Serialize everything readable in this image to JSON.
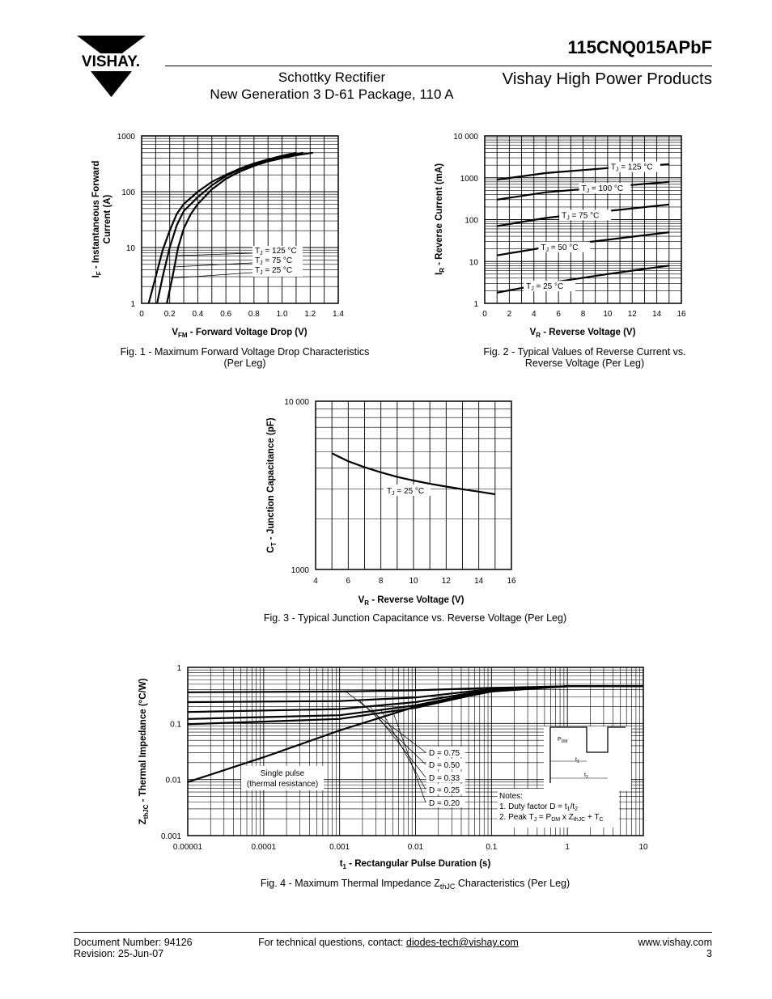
{
  "header": {
    "brand": "VISHAY.",
    "part_number": "115CNQ015APbF",
    "subtitle_line1": "Schottky Rectifier",
    "subtitle_line2": "New Generation 3 D-61 Package, 110 A",
    "division": "Vishay High Power Products"
  },
  "chart_data": [
    {
      "type": "line",
      "caption_line1": "Fig. 1 - Maximum Forward Voltage Drop Characteristics",
      "caption_line2": "(Per Leg)",
      "xlabel": "V",
      "xlabel_sub": "FM",
      "xlabel_rest": " - Forward Voltage Drop (V)",
      "ylabel_line1": "I",
      "ylabel_sub": "F",
      "ylabel_rest1": " - Instantaneous Forward",
      "ylabel_line2": "Current (A)",
      "x_ticks": [
        "0",
        "0.2",
        "0.4",
        "0.6",
        "0.8",
        "1.0",
        "1.2",
        "1.4"
      ],
      "y_ticks": [
        "1",
        "10",
        "100",
        "1000"
      ],
      "xlim": [
        0,
        1.4
      ],
      "ylim": [
        1,
        1000
      ],
      "y_scale": "log",
      "series": [
        {
          "name": "TJ = 125 °C",
          "x": [
            0.05,
            0.1,
            0.15,
            0.2,
            0.25,
            0.3,
            0.4,
            0.5,
            0.6,
            0.7,
            0.8,
            0.9,
            1.0,
            1.1
          ],
          "y": [
            1,
            3,
            9,
            20,
            40,
            60,
            100,
            150,
            200,
            260,
            320,
            380,
            440,
            500
          ]
        },
        {
          "name": "TJ = 75 °C",
          "x": [
            0.11,
            0.15,
            0.2,
            0.25,
            0.3,
            0.35,
            0.4,
            0.5,
            0.6,
            0.7,
            0.8,
            0.9,
            1.0,
            1.15
          ],
          "y": [
            1,
            3,
            10,
            25,
            45,
            60,
            80,
            130,
            190,
            250,
            310,
            370,
            420,
            500
          ]
        },
        {
          "name": "TJ = 25 °C",
          "x": [
            0.18,
            0.22,
            0.26,
            0.3,
            0.35,
            0.4,
            0.5,
            0.6,
            0.7,
            0.8,
            0.9,
            1.0,
            1.1,
            1.22
          ],
          "y": [
            1,
            3,
            10,
            22,
            40,
            60,
            110,
            170,
            230,
            290,
            350,
            400,
            450,
            500
          ]
        }
      ],
      "legend": [
        {
          "pre": "T",
          "sub": "J",
          "post": " = 125 °C"
        },
        {
          "pre": "T",
          "sub": "J",
          "post": " = 75 °C"
        },
        {
          "pre": "T",
          "sub": "J",
          "post": " = 25 °C"
        }
      ]
    },
    {
      "type": "line",
      "caption_line1": "Fig. 2 - Typical Values of Reverse Current vs.",
      "caption_line2": "Reverse Voltage (Per Leg)",
      "xlabel": "V",
      "xlabel_sub": "R",
      "xlabel_rest": " - Reverse Voltage (V)",
      "ylabel_line1": "I",
      "ylabel_sub": "R",
      "ylabel_rest1": " - Reverse Current (mA)",
      "x_ticks": [
        "0",
        "2",
        "4",
        "6",
        "8",
        "10",
        "12",
        "14",
        "16"
      ],
      "y_ticks": [
        "1",
        "10",
        "100",
        "1000",
        "10 000"
      ],
      "xlim": [
        0,
        16
      ],
      "ylim": [
        1,
        10000
      ],
      "y_scale": "log",
      "series": [
        {
          "name": "TJ = 125 °C",
          "x": [
            1,
            5,
            10,
            15
          ],
          "y": [
            900,
            1300,
            1700,
            2100
          ]
        },
        {
          "name": "TJ = 100 °C",
          "x": [
            1,
            5,
            10,
            15
          ],
          "y": [
            300,
            450,
            600,
            800
          ]
        },
        {
          "name": "TJ = 75 °C",
          "x": [
            1,
            5,
            10,
            15
          ],
          "y": [
            70,
            110,
            160,
            230
          ]
        },
        {
          "name": "TJ = 50 °C",
          "x": [
            1,
            5,
            10,
            15
          ],
          "y": [
            14,
            22,
            33,
            50
          ]
        },
        {
          "name": "TJ = 25 °C",
          "x": [
            1,
            5,
            10,
            15
          ],
          "y": [
            1.8,
            3,
            5,
            8
          ]
        }
      ],
      "labels": [
        {
          "pre": "T",
          "sub": "J",
          "post": " = 125 °C"
        },
        {
          "pre": "T",
          "sub": "J",
          "post": " = 100 °C"
        },
        {
          "pre": "T",
          "sub": "J",
          "post": " = 75 °C"
        },
        {
          "pre": "T",
          "sub": "J",
          "post": " = 50 °C"
        },
        {
          "pre": "T",
          "sub": "J",
          "post": " = 25 °C"
        }
      ]
    },
    {
      "type": "line",
      "caption": "Fig. 3 - Typical Junction Capacitance vs. Reverse Voltage (Per Leg)",
      "xlabel": "V",
      "xlabel_sub": "R",
      "xlabel_rest": " - Reverse Voltage (V)",
      "ylabel_line1": "C",
      "ylabel_sub": "T",
      "ylabel_rest1": " - Junction Capacitance (pF)",
      "x_ticks": [
        "4",
        "6",
        "8",
        "10",
        "12",
        "14",
        "16"
      ],
      "y_ticks": [
        "1000",
        "10 000"
      ],
      "xlim": [
        4,
        16
      ],
      "ylim": [
        1000,
        10000
      ],
      "y_scale": "log",
      "series": [
        {
          "name": "TJ = 25 °C",
          "x": [
            5,
            6,
            7,
            8,
            9,
            10,
            11,
            12,
            13,
            14,
            15
          ],
          "y": [
            4900,
            4400,
            4050,
            3780,
            3550,
            3380,
            3230,
            3110,
            3000,
            2900,
            2800
          ]
        }
      ],
      "label": {
        "pre": "T",
        "sub": "J",
        "post": " = 25 °C"
      }
    },
    {
      "type": "line",
      "caption_pre": "Fig. 4 - Maximum Thermal Impedance Z",
      "caption_sub": "thJC",
      "caption_post": " Characteristics (Per Leg)",
      "xlabel": "t",
      "xlabel_sub": "1",
      "xlabel_rest": " - Rectangular Pulse Duration (s)",
      "ylabel_line1": "Z",
      "ylabel_sub": "thJC",
      "ylabel_rest1": " - Thermal Impedance (°C/W)",
      "x_ticks": [
        "0.00001",
        "0.0001",
        "0.001",
        "0.01",
        "0.1",
        "1",
        "10"
      ],
      "y_ticks": [
        "0.001",
        "0.01",
        "0.1",
        "1"
      ],
      "xlim": [
        1e-05,
        10
      ],
      "ylim": [
        0.001,
        1
      ],
      "x_scale": "log",
      "y_scale": "log",
      "series": [
        {
          "name": "D = 0.75",
          "x": [
            1e-05,
            0.001,
            0.01,
            0.1,
            1,
            10
          ],
          "y": [
            0.36,
            0.37,
            0.39,
            0.43,
            0.46,
            0.46
          ]
        },
        {
          "name": "D = 0.50",
          "x": [
            1e-05,
            0.001,
            0.01,
            0.1,
            1,
            10
          ],
          "y": [
            0.24,
            0.25,
            0.29,
            0.41,
            0.46,
            0.46
          ]
        },
        {
          "name": "D = 0.33",
          "x": [
            1e-05,
            0.001,
            0.01,
            0.1,
            1,
            10
          ],
          "y": [
            0.16,
            0.18,
            0.24,
            0.4,
            0.46,
            0.46
          ]
        },
        {
          "name": "D = 0.25",
          "x": [
            1e-05,
            0.001,
            0.01,
            0.1,
            1,
            10
          ],
          "y": [
            0.12,
            0.14,
            0.21,
            0.39,
            0.46,
            0.46
          ]
        },
        {
          "name": "D = 0.20",
          "x": [
            1e-05,
            0.001,
            0.01,
            0.1,
            1,
            10
          ],
          "y": [
            0.097,
            0.12,
            0.19,
            0.38,
            0.46,
            0.46
          ]
        },
        {
          "name": "Single pulse",
          "x": [
            1e-05,
            0.0001,
            0.001,
            0.01,
            0.1,
            1,
            10
          ],
          "y": [
            0.009,
            0.025,
            0.075,
            0.2,
            0.37,
            0.46,
            0.46
          ]
        }
      ],
      "duty_labels": [
        "D = 0.75",
        "D = 0.50",
        "D = 0.33",
        "D = 0.25",
        "D = 0.20"
      ],
      "single_pulse_line1": "Single pulse",
      "single_pulse_line2": "(thermal resistance)",
      "inset": {
        "pdm_main": "P",
        "pdm_sub": "DM",
        "t1_main": "t",
        "t1_sub": "1",
        "t2_main": "t",
        "t2_sub": "2"
      },
      "notes": {
        "title": "Notes:",
        "line1_pre": "1. Duty factor D = t",
        "line1_sub1": "1",
        "line1_mid": "/t",
        "line1_sub2": "2",
        "line2_pre": "2. Peak T",
        "line2_sub1": "J",
        "line2_mid1": " = P",
        "line2_sub2": "DM",
        "line2_mid2": " x Z",
        "line2_sub3": "thJC",
        "line2_mid3": " + T",
        "line2_sub4": "C"
      }
    }
  ],
  "footer": {
    "doc_number": "Document Number: 94126",
    "revision": "Revision: 25-Jun-07",
    "contact_pre": "For technical questions, contact: ",
    "contact_email": "diodes-tech@vishay.com",
    "website": "www.vishay.com",
    "page": "3"
  }
}
